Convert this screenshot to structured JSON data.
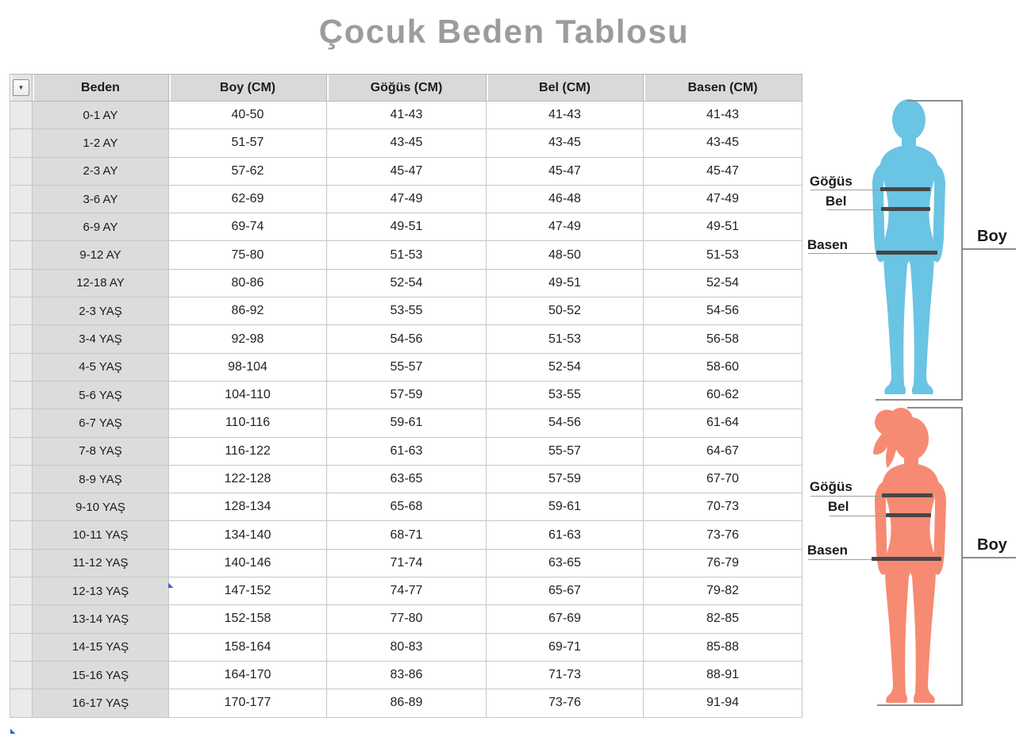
{
  "page": {
    "title": "Çocuk Beden Tablosu"
  },
  "table": {
    "filter_button": {
      "glyph": "▼"
    },
    "headers": {
      "beden": "Beden",
      "boy": "Boy (CM)",
      "gogus": "Göğüs (CM)",
      "bel": "Bel (CM)",
      "basen": "Basen (CM)"
    },
    "rows": [
      {
        "beden": "0-1 AY",
        "boy": "40-50",
        "gogus": "41-43",
        "bel": "41-43",
        "basen": "41-43"
      },
      {
        "beden": "1-2 AY",
        "boy": "51-57",
        "gogus": "43-45",
        "bel": "43-45",
        "basen": "43-45"
      },
      {
        "beden": "2-3 AY",
        "boy": "57-62",
        "gogus": "45-47",
        "bel": "45-47",
        "basen": "45-47"
      },
      {
        "beden": "3-6 AY",
        "boy": "62-69",
        "gogus": "47-49",
        "bel": "46-48",
        "basen": "47-49"
      },
      {
        "beden": "6-9 AY",
        "boy": "69-74",
        "gogus": "49-51",
        "bel": "47-49",
        "basen": "49-51"
      },
      {
        "beden": "9-12 AY",
        "boy": "75-80",
        "gogus": "51-53",
        "bel": "48-50",
        "basen": "51-53"
      },
      {
        "beden": "12-18 AY",
        "boy": "80-86",
        "gogus": "52-54",
        "bel": "49-51",
        "basen": "52-54"
      },
      {
        "beden": "2-3 YAŞ",
        "boy": "86-92",
        "gogus": "53-55",
        "bel": "50-52",
        "basen": "54-56"
      },
      {
        "beden": "3-4 YAŞ",
        "boy": "92-98",
        "gogus": "54-56",
        "bel": "51-53",
        "basen": "56-58"
      },
      {
        "beden": "4-5 YAŞ",
        "boy": "98-104",
        "gogus": "55-57",
        "bel": "52-54",
        "basen": "58-60"
      },
      {
        "beden": "5-6 YAŞ",
        "boy": "104-110",
        "gogus": "57-59",
        "bel": "53-55",
        "basen": "60-62"
      },
      {
        "beden": "6-7 YAŞ",
        "boy": "110-116",
        "gogus": "59-61",
        "bel": "54-56",
        "basen": "61-64"
      },
      {
        "beden": "7-8 YAŞ",
        "boy": "116-122",
        "gogus": "61-63",
        "bel": "55-57",
        "basen": "64-67"
      },
      {
        "beden": "8-9 YAŞ",
        "boy": "122-128",
        "gogus": "63-65",
        "bel": "57-59",
        "basen": "67-70"
      },
      {
        "beden": "9-10 YAŞ",
        "boy": "128-134",
        "gogus": "65-68",
        "bel": "59-61",
        "basen": "70-73"
      },
      {
        "beden": "10-11 YAŞ",
        "boy": "134-140",
        "gogus": "68-71",
        "bel": "61-63",
        "basen": "73-76"
      },
      {
        "beden": "11-12 YAŞ",
        "boy": "140-146",
        "gogus": "71-74",
        "bel": "63-65",
        "basen": "76-79"
      },
      {
        "beden": "12-13 YAŞ",
        "boy": "147-152",
        "gogus": "74-77",
        "bel": "65-67",
        "basen": "79-82"
      },
      {
        "beden": "13-14 YAŞ",
        "boy": "152-158",
        "gogus": "77-80",
        "bel": "67-69",
        "basen": "82-85"
      },
      {
        "beden": "14-15 YAŞ",
        "boy": "158-164",
        "gogus": "80-83",
        "bel": "69-71",
        "basen": "85-88"
      },
      {
        "beden": "15-16 YAŞ",
        "boy": "164-170",
        "gogus": "83-86",
        "bel": "71-73",
        "basen": "88-91"
      },
      {
        "beden": "16-17 YAŞ",
        "boy": "170-177",
        "gogus": "86-89",
        "bel": "73-76",
        "basen": "91-94"
      }
    ]
  },
  "figures": {
    "child_blue": {
      "color": "#6ac4e3",
      "labels": {
        "gogus": "Göğüs",
        "bel": "Bel",
        "basen": "Basen",
        "boy": "Boy"
      }
    },
    "child_pink": {
      "color": "#f78a73",
      "labels": {
        "gogus": "Göğüs",
        "bel": "Bel",
        "basen": "Basen",
        "boy": "Boy"
      }
    }
  },
  "colors": {
    "title": "#9c9c9c",
    "header_bg": "#d9d9d9",
    "beden_col_bg": "#dcdcdc",
    "select_col_bg": "#eaeaea",
    "border": "#c6c6c6",
    "measure_bar": "#474747",
    "bracket_line": "#8c8c8c",
    "cell_flag": "#3c5ed8"
  },
  "chart_data": {
    "type": "table",
    "title": "Çocuk Beden Tablosu",
    "columns": [
      "Beden",
      "Boy (CM)",
      "Göğüs (CM)",
      "Bel (CM)",
      "Basen (CM)"
    ],
    "rows": [
      [
        "0-1 AY",
        "40-50",
        "41-43",
        "41-43",
        "41-43"
      ],
      [
        "1-2 AY",
        "51-57",
        "43-45",
        "43-45",
        "43-45"
      ],
      [
        "2-3 AY",
        "57-62",
        "45-47",
        "45-47",
        "45-47"
      ],
      [
        "3-6 AY",
        "62-69",
        "47-49",
        "46-48",
        "47-49"
      ],
      [
        "6-9 AY",
        "69-74",
        "49-51",
        "47-49",
        "49-51"
      ],
      [
        "9-12 AY",
        "75-80",
        "51-53",
        "48-50",
        "51-53"
      ],
      [
        "12-18 AY",
        "80-86",
        "52-54",
        "49-51",
        "52-54"
      ],
      [
        "2-3 YAŞ",
        "86-92",
        "53-55",
        "50-52",
        "54-56"
      ],
      [
        "3-4 YAŞ",
        "92-98",
        "54-56",
        "51-53",
        "56-58"
      ],
      [
        "4-5 YAŞ",
        "98-104",
        "55-57",
        "52-54",
        "58-60"
      ],
      [
        "5-6 YAŞ",
        "104-110",
        "57-59",
        "53-55",
        "60-62"
      ],
      [
        "6-7 YAŞ",
        "110-116",
        "59-61",
        "54-56",
        "61-64"
      ],
      [
        "7-8 YAŞ",
        "116-122",
        "61-63",
        "55-57",
        "64-67"
      ],
      [
        "8-9 YAŞ",
        "122-128",
        "63-65",
        "57-59",
        "67-70"
      ],
      [
        "9-10 YAŞ",
        "128-134",
        "65-68",
        "59-61",
        "70-73"
      ],
      [
        "10-11 YAŞ",
        "134-140",
        "68-71",
        "61-63",
        "73-76"
      ],
      [
        "11-12 YAŞ",
        "140-146",
        "71-74",
        "63-65",
        "76-79"
      ],
      [
        "12-13 YAŞ",
        "147-152",
        "74-77",
        "65-67",
        "79-82"
      ],
      [
        "13-14 YAŞ",
        "152-158",
        "77-80",
        "67-69",
        "82-85"
      ],
      [
        "14-15 YAŞ",
        "158-164",
        "80-83",
        "69-71",
        "85-88"
      ],
      [
        "15-16 YAŞ",
        "164-170",
        "83-86",
        "71-73",
        "88-91"
      ],
      [
        "16-17 YAŞ",
        "170-177",
        "86-89",
        "73-76",
        "91-94"
      ]
    ],
    "annotations": [
      "Göğüs",
      "Bel",
      "Basen",
      "Boy"
    ],
    "legend_position": "none",
    "grid": true
  }
}
